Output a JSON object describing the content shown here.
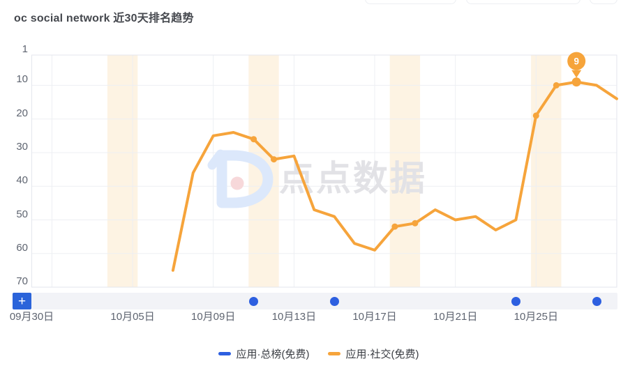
{
  "title": "oc social network 近30天排名趋势",
  "watermark": {
    "text": "点点数据"
  },
  "controls": {
    "restore_label": "+"
  },
  "colors": {
    "social_orange": "#f6a43b",
    "total_blue": "#2d5fe0",
    "weekend_band": "#fdf3e3",
    "restore_button_blue": "#2b64da",
    "gridline": "#edeff3",
    "plot_border": "#e3e6ed",
    "strip_bg": "#f2f3f7"
  },
  "chart_data": {
    "type": "line",
    "title": "oc social network 近30天排名趋势",
    "y_axis": {
      "ticks": [
        1,
        10,
        20,
        30,
        40,
        50,
        60,
        70
      ],
      "inverted": true,
      "range": [
        1,
        70
      ],
      "meaning": "app store rank (1 = best)"
    },
    "x_axis": {
      "start_date": "09月30日",
      "end_date": "10月29日",
      "total_days": 30,
      "tick_labels": [
        "09月30日",
        "10月05日",
        "10月09日",
        "10月13日",
        "10月17日",
        "10月21日",
        "10月25日"
      ],
      "tick_day_indices": [
        0,
        5,
        9,
        13,
        17,
        21,
        25
      ],
      "grid_day_indices": [
        1,
        5,
        9,
        13,
        17,
        21,
        25,
        29
      ]
    },
    "weekend_bands_day_indices": [
      [
        4,
        5
      ],
      [
        11,
        12
      ],
      [
        18,
        19
      ],
      [
        25,
        26
      ]
    ],
    "series": [
      {
        "name": "应用·总榜(免费)",
        "color": "#2d5fe0",
        "display": "off-chart dots in bottom strip (rank beyond 70)",
        "marker_dates": [
          "10月11日",
          "10月15日",
          "10月24日",
          "10月28日"
        ],
        "marker_day_indices": [
          11,
          15,
          24,
          28
        ]
      },
      {
        "name": "应用·社交(免费)",
        "color": "#f6a43b",
        "start_day_index": 7,
        "dates": [
          "10月07日",
          "10月08日",
          "10月09日",
          "10月10日",
          "10月11日",
          "10月12日",
          "10月13日",
          "10月14日",
          "10月15日",
          "10月16日",
          "10月17日",
          "10月18日",
          "10月19日",
          "10月20日",
          "10月21日",
          "10月22日",
          "10月23日",
          "10月24日",
          "10月25日",
          "10月26日",
          "10月27日",
          "10月28日",
          "10月29日"
        ],
        "values": [
          65,
          36,
          25,
          24,
          26,
          32,
          31,
          47,
          49,
          57,
          59,
          52,
          51,
          47,
          50,
          49,
          53,
          50,
          19,
          10,
          9,
          10,
          14
        ],
        "weekend_marker_day_indices": [
          11,
          12,
          18,
          19,
          25,
          26
        ]
      }
    ],
    "best_rank_pin": {
      "date": "10月27日",
      "day_index": 27,
      "value": 9
    },
    "legend": {
      "position": "bottom-center",
      "items": [
        "应用·总榜(免费)",
        "应用·社交(免费)"
      ]
    }
  }
}
